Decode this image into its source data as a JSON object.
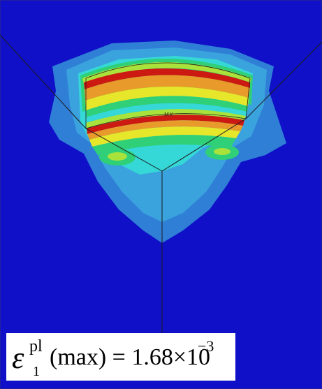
{
  "figure": {
    "colors": {
      "background": "#1010c8",
      "background_edge": "#1a1ab0",
      "contour_light_blue": "#2f7fd6",
      "contour_cyan_blue": "#3aa2dd",
      "contour_cyan": "#35d7d7",
      "contour_green": "#2fd078",
      "contour_yellow_green": "#a9e23b",
      "contour_yellow": "#e6e62b",
      "contour_orange": "#e89a2a",
      "contour_red": "#cc1a12",
      "edge_line": "#1b1b1b"
    },
    "marker_label": "MX"
  },
  "caption": {
    "symbol": "ε",
    "superscript": "pl",
    "subscript": "1",
    "expression": "(max) = 1.68×10",
    "exponent": "−3"
  }
}
